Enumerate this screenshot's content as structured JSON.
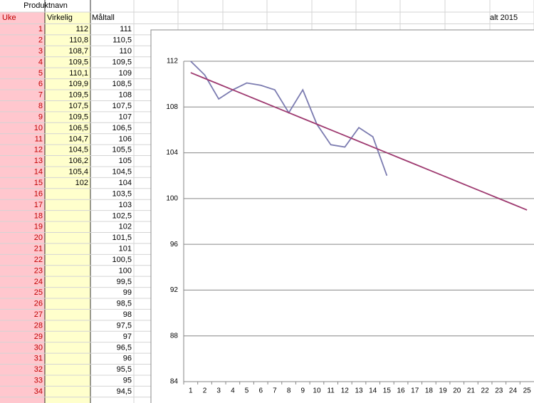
{
  "sheet": {
    "title": "Produktnavn",
    "headers": [
      "Uke",
      "Virkelig",
      "Måltall"
    ],
    "note": "alt 2015",
    "rows": [
      [
        1,
        "112",
        "111"
      ],
      [
        2,
        "110,8",
        "110,5"
      ],
      [
        3,
        "108,7",
        "110"
      ],
      [
        4,
        "109,5",
        "109,5"
      ],
      [
        5,
        "110,1",
        "109"
      ],
      [
        6,
        "109,9",
        "108,5"
      ],
      [
        7,
        "109,5",
        "108"
      ],
      [
        8,
        "107,5",
        "107,5"
      ],
      [
        9,
        "109,5",
        "107"
      ],
      [
        10,
        "106,5",
        "106,5"
      ],
      [
        11,
        "104,7",
        "106"
      ],
      [
        12,
        "104,5",
        "105,5"
      ],
      [
        13,
        "106,2",
        "105"
      ],
      [
        14,
        "105,4",
        "104,5"
      ],
      [
        15,
        "102",
        "104"
      ],
      [
        16,
        null,
        "103,5"
      ],
      [
        17,
        null,
        "103"
      ],
      [
        18,
        null,
        "102,5"
      ],
      [
        19,
        null,
        "102"
      ],
      [
        20,
        null,
        "101,5"
      ],
      [
        21,
        null,
        "101"
      ],
      [
        22,
        null,
        "100,5"
      ],
      [
        23,
        null,
        "100"
      ],
      [
        24,
        null,
        "99,5"
      ],
      [
        25,
        null,
        "99"
      ],
      [
        26,
        null,
        "98,5"
      ],
      [
        27,
        null,
        "98"
      ],
      [
        28,
        null,
        "97,5"
      ],
      [
        29,
        null,
        "97"
      ],
      [
        30,
        null,
        "96,5"
      ],
      [
        31,
        null,
        "96"
      ],
      [
        32,
        null,
        "95,5"
      ],
      [
        33,
        null,
        "95"
      ],
      [
        34,
        null,
        "94,5"
      ]
    ]
  },
  "chart_data": {
    "type": "line",
    "categories": [
      1,
      2,
      3,
      4,
      5,
      6,
      7,
      8,
      9,
      10,
      11,
      12,
      13,
      14,
      15,
      16,
      17,
      18,
      19,
      20,
      21,
      22,
      23,
      24,
      25
    ],
    "series": [
      {
        "color": "#7b7bb0",
        "values": [
          112,
          110.8,
          108.7,
          109.5,
          110.1,
          109.9,
          109.5,
          107.5,
          109.5,
          106.5,
          104.7,
          104.5,
          106.2,
          105.4,
          102,
          null,
          null,
          null,
          null,
          null,
          null,
          null,
          null,
          null,
          null
        ]
      },
      {
        "color": "#9e3a70",
        "values": [
          111,
          110.5,
          110,
          109.5,
          109,
          108.5,
          108,
          107.5,
          107,
          106.5,
          106,
          105.5,
          105,
          104.5,
          104,
          103.5,
          103,
          102.5,
          102,
          101.5,
          101,
          100.5,
          100,
          99.5,
          99
        ]
      }
    ],
    "ylim": [
      84,
      112
    ],
    "yticks": [
      84,
      88,
      92,
      96,
      100,
      104,
      108,
      112
    ],
    "grid": true
  }
}
